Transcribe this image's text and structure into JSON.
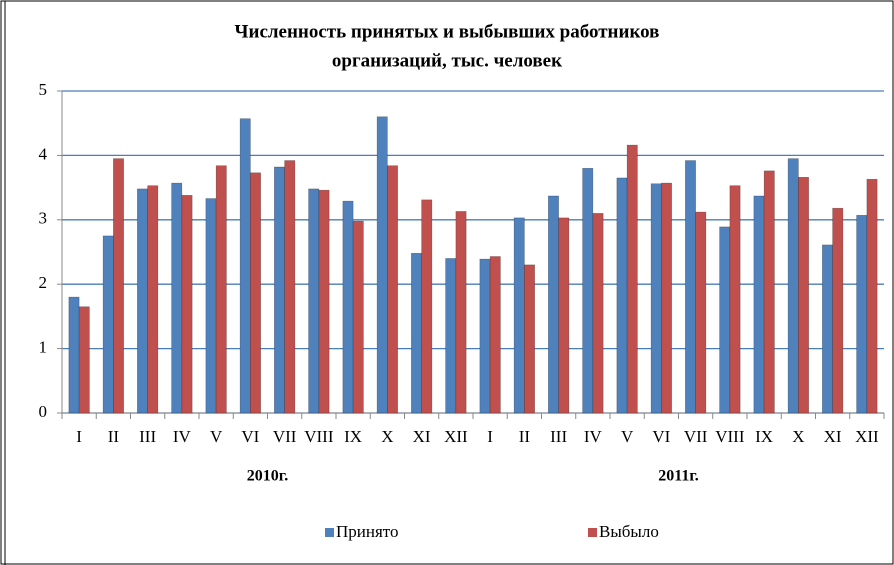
{
  "chart_data": {
    "type": "bar",
    "title": [
      "Численность принятых и выбывших работников",
      "организаций, тыс. человек"
    ],
    "categories": [
      "I",
      "II",
      "III",
      "IV",
      "V",
      "VI",
      "VII",
      "VIII",
      "IX",
      "X",
      "XI",
      "XII",
      "I",
      "II",
      "III",
      "IV",
      "V",
      "VI",
      "VII",
      "VIII",
      "IX",
      "X",
      "XI",
      "XII"
    ],
    "groups": [
      "2010г.",
      "2011г."
    ],
    "series": [
      {
        "name": "Принято",
        "color": "#4f81bd",
        "values": [
          1.8,
          2.75,
          3.48,
          3.57,
          3.33,
          4.57,
          3.82,
          3.48,
          3.29,
          4.6,
          2.48,
          2.4,
          2.39,
          3.03,
          3.37,
          3.8,
          3.65,
          3.56,
          3.92,
          2.89,
          3.37,
          3.95,
          2.61,
          3.07
        ]
      },
      {
        "name": "Выбыло",
        "color": "#c0504d",
        "values": [
          1.65,
          3.95,
          3.53,
          3.38,
          3.84,
          3.73,
          3.92,
          3.46,
          2.98,
          3.84,
          3.31,
          3.13,
          2.43,
          2.3,
          3.03,
          3.1,
          4.16,
          3.57,
          3.12,
          3.53,
          3.76,
          3.66,
          3.18,
          3.63
        ]
      }
    ],
    "ylim": [
      0,
      5
    ],
    "yticks": [
      0,
      1,
      2,
      3,
      4,
      5
    ],
    "grid": true,
    "legend": "bottom"
  }
}
